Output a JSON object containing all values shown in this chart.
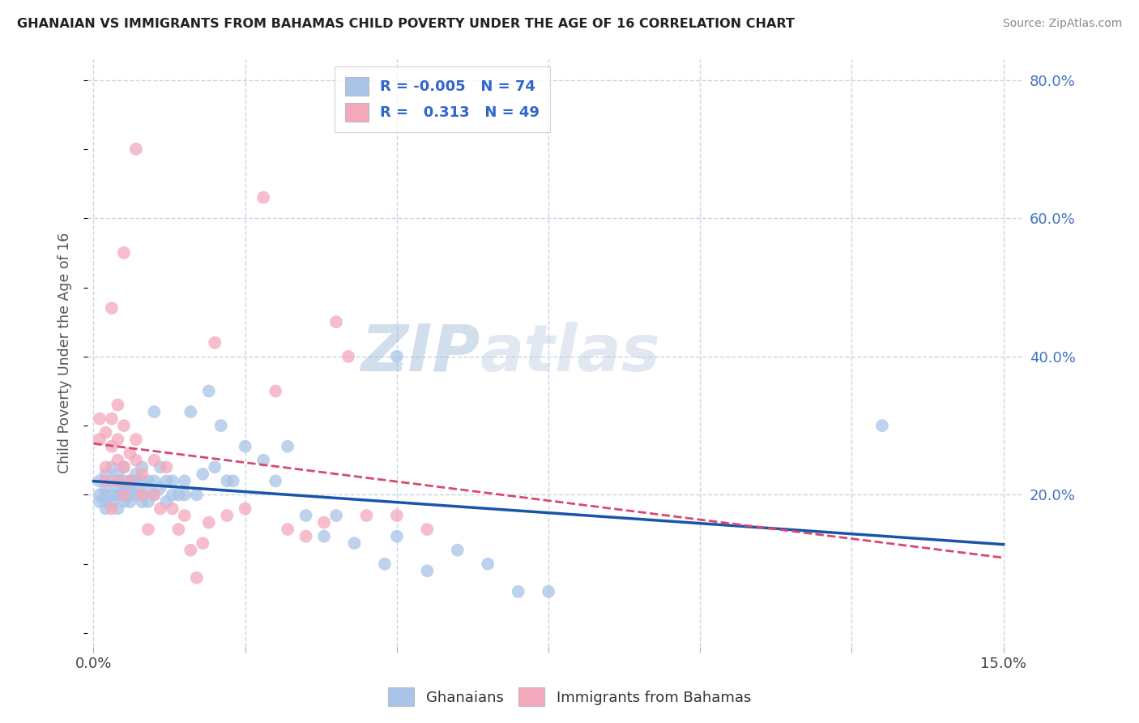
{
  "title": "GHANAIAN VS IMMIGRANTS FROM BAHAMAS CHILD POVERTY UNDER THE AGE OF 16 CORRELATION CHART",
  "source": "Source: ZipAtlas.com",
  "ylabel": "Child Poverty Under the Age of 16",
  "xlim": [
    -0.001,
    0.153
  ],
  "ylim": [
    -0.02,
    0.83
  ],
  "xticks": [
    0.0,
    0.025,
    0.05,
    0.075,
    0.1,
    0.125,
    0.15
  ],
  "xtick_labels": [
    "0.0%",
    "",
    "",
    "",
    "",
    "",
    "15.0%"
  ],
  "ytick_positions": [
    0.2,
    0.4,
    0.6,
    0.8
  ],
  "ytick_labels": [
    "20.0%",
    "40.0%",
    "60.0%",
    "80.0%"
  ],
  "blue_color": "#a8c4e8",
  "pink_color": "#f4a8bc",
  "blue_line_color": "#1855a8",
  "pink_line_color": "#d84870",
  "pink_dash_color": "#e8a0b4",
  "grid_color": "#c8d4e4",
  "watermark_color": "#c8d4e8",
  "legend_blue_label_r": "R = -0.005",
  "legend_blue_label_n": "N = 74",
  "legend_pink_label_r": "R =   0.313",
  "legend_pink_label_n": "N = 49",
  "ghanaian_x": [
    0.001,
    0.001,
    0.001,
    0.002,
    0.002,
    0.002,
    0.002,
    0.002,
    0.003,
    0.003,
    0.003,
    0.003,
    0.004,
    0.004,
    0.004,
    0.004,
    0.004,
    0.005,
    0.005,
    0.005,
    0.005,
    0.005,
    0.006,
    0.006,
    0.006,
    0.006,
    0.007,
    0.007,
    0.007,
    0.007,
    0.008,
    0.008,
    0.008,
    0.008,
    0.009,
    0.009,
    0.009,
    0.01,
    0.01,
    0.01,
    0.011,
    0.011,
    0.012,
    0.012,
    0.013,
    0.013,
    0.014,
    0.015,
    0.015,
    0.016,
    0.017,
    0.018,
    0.019,
    0.02,
    0.021,
    0.022,
    0.023,
    0.025,
    0.028,
    0.03,
    0.032,
    0.035,
    0.038,
    0.04,
    0.043,
    0.048,
    0.05,
    0.055,
    0.06,
    0.065,
    0.07,
    0.075,
    0.13,
    0.05
  ],
  "ghanaian_y": [
    0.2,
    0.19,
    0.22,
    0.2,
    0.21,
    0.19,
    0.23,
    0.18,
    0.2,
    0.22,
    0.19,
    0.24,
    0.2,
    0.22,
    0.18,
    0.21,
    0.23,
    0.19,
    0.21,
    0.2,
    0.22,
    0.24,
    0.2,
    0.22,
    0.19,
    0.21,
    0.2,
    0.22,
    0.21,
    0.23,
    0.19,
    0.22,
    0.2,
    0.24,
    0.21,
    0.19,
    0.22,
    0.2,
    0.22,
    0.32,
    0.21,
    0.24,
    0.19,
    0.22,
    0.2,
    0.22,
    0.2,
    0.2,
    0.22,
    0.32,
    0.2,
    0.23,
    0.35,
    0.24,
    0.3,
    0.22,
    0.22,
    0.27,
    0.25,
    0.22,
    0.27,
    0.17,
    0.14,
    0.17,
    0.13,
    0.1,
    0.14,
    0.09,
    0.12,
    0.1,
    0.06,
    0.06,
    0.3,
    0.4
  ],
  "bahamas_x": [
    0.001,
    0.001,
    0.002,
    0.002,
    0.002,
    0.003,
    0.003,
    0.003,
    0.004,
    0.004,
    0.004,
    0.005,
    0.005,
    0.005,
    0.006,
    0.006,
    0.007,
    0.007,
    0.008,
    0.008,
    0.009,
    0.01,
    0.011,
    0.012,
    0.013,
    0.014,
    0.015,
    0.016,
    0.017,
    0.018,
    0.019,
    0.02,
    0.022,
    0.025,
    0.028,
    0.03,
    0.032,
    0.035,
    0.038,
    0.04,
    0.042,
    0.045,
    0.05,
    0.055,
    0.003,
    0.004,
    0.005,
    0.007,
    0.01
  ],
  "bahamas_y": [
    0.31,
    0.28,
    0.24,
    0.29,
    0.22,
    0.27,
    0.31,
    0.18,
    0.25,
    0.22,
    0.28,
    0.24,
    0.2,
    0.3,
    0.22,
    0.26,
    0.25,
    0.28,
    0.23,
    0.2,
    0.15,
    0.2,
    0.18,
    0.24,
    0.18,
    0.15,
    0.17,
    0.12,
    0.08,
    0.13,
    0.16,
    0.42,
    0.17,
    0.18,
    0.63,
    0.35,
    0.15,
    0.14,
    0.16,
    0.45,
    0.4,
    0.17,
    0.17,
    0.15,
    0.47,
    0.33,
    0.55,
    0.7,
    0.25
  ]
}
